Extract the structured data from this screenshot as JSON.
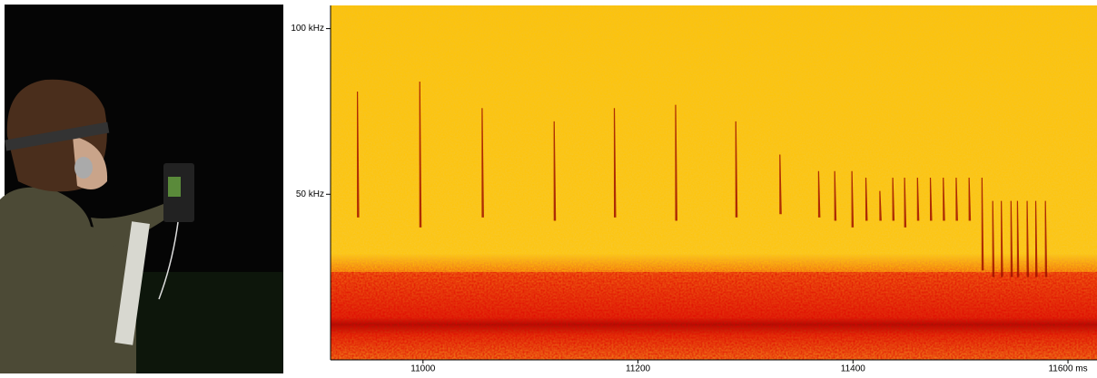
{
  "chart_data": {
    "type": "spectrogram",
    "xlim": [
      10914,
      11627
    ],
    "xticks": [
      11000,
      11200,
      11400,
      {
        "value": 11600,
        "label": "11600 ms"
      }
    ],
    "ylim": [
      0,
      107
    ],
    "yticks": [
      {
        "value": 50,
        "label": "50 kHz"
      },
      {
        "value": 100,
        "label": "100 kHz"
      }
    ],
    "calls": {
      "x": [
        10939,
        10997,
        11055,
        11122,
        11178,
        11235,
        11291,
        11332,
        11368,
        11383,
        11399,
        11412,
        11425,
        11437,
        11448,
        11460,
        11472,
        11484,
        11496,
        11508,
        11520,
        11530,
        11538,
        11547,
        11553,
        11562,
        11570,
        11579
      ],
      "high": [
        81,
        84,
        76,
        72,
        76,
        77,
        72,
        62,
        57,
        57,
        57,
        55,
        51,
        55,
        55,
        55,
        55,
        55,
        55,
        55,
        55,
        48,
        48,
        48,
        48,
        48,
        48,
        48
      ],
      "low": [
        43,
        40,
        43,
        42,
        43,
        42,
        43,
        44,
        43,
        42,
        40,
        42,
        42,
        42,
        40,
        42,
        42,
        42,
        42,
        42,
        27,
        25,
        25,
        25,
        25,
        25,
        25,
        25
      ],
      "color": "#a01000"
    }
  }
}
